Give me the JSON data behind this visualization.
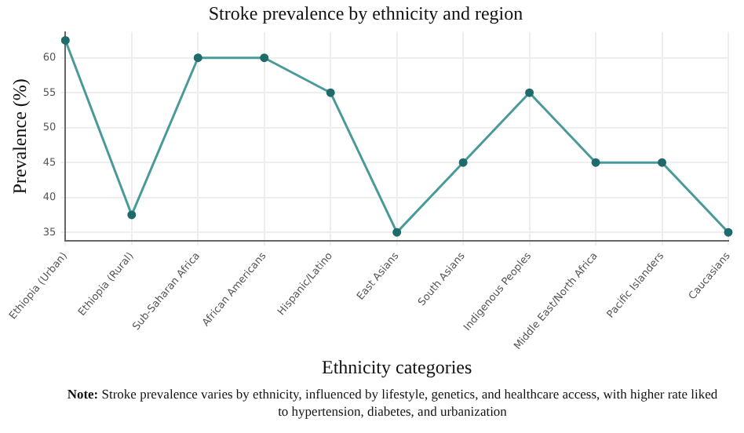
{
  "chart_data": {
    "type": "line",
    "title": "Stroke prevalence by ethnicity and region",
    "xlabel": "Ethnicity categories",
    "ylabel": "Prevalence (%)",
    "categories": [
      "Ethiopia (Urban)",
      "Ethiopia (Rural)",
      "Sub-Saharan Africa",
      "African Americans",
      "Hispanic/Latino",
      "East Asians",
      "South Asians",
      "Indigenous Peoples",
      "Middle East/North Africa",
      "Pacific Islanders",
      "Caucasians"
    ],
    "series": [
      {
        "color": "#4a9a9a",
        "values": [
          62.5,
          37.5,
          60,
          60,
          55,
          35,
          45,
          55,
          45,
          45,
          35
        ]
      }
    ],
    "ylim": [
      33.8,
      63.7
    ],
    "yticks": [
      35,
      40,
      45,
      50,
      55,
      60
    ],
    "grid": true,
    "legend": false,
    "marker": "circle",
    "line_style": "solid",
    "annotations": [
      "Note: Stroke prevalence varies by ethnicity, influenced by lifestyle, genetics, and healthcare access, with higher rate liked to hypertension, diabetes, and urbanization"
    ]
  }
}
